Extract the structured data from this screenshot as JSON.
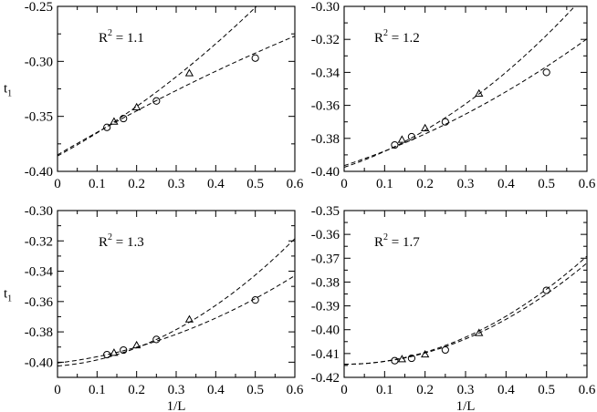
{
  "chart_data": [
    {
      "type": "scatter",
      "annotation": {
        "base": "R",
        "sup": "2",
        "rest": " = 1.1"
      },
      "xlabel": "",
      "ylabel": "t",
      "ylabel_sub": "1",
      "xlim": [
        0,
        0.6
      ],
      "ylim": [
        -0.4,
        -0.25
      ],
      "xticks": [
        0,
        0.1,
        0.2,
        0.3,
        0.4,
        0.5,
        0.6
      ],
      "xtick_labels": [
        "0",
        "0.1",
        "0.2",
        "0.3",
        "0.4",
        "0.5",
        "0.6"
      ],
      "yticks": [
        -0.4,
        -0.35,
        -0.3,
        -0.25
      ],
      "ytick_labels": [
        "-0.40",
        "-0.35",
        "-0.30",
        "-0.25"
      ],
      "series": [
        {
          "marker": "circle",
          "x": [
            0.125,
            0.1667,
            0.25,
            0.5
          ],
          "y": [
            -0.36,
            -0.352,
            -0.336,
            -0.297
          ],
          "fit": [
            -0.385,
            0.21,
            -0.05
          ]
        },
        {
          "marker": "triangle",
          "x": [
            0.1429,
            0.2,
            0.3333
          ],
          "y": [
            -0.355,
            -0.342,
            -0.311
          ],
          "fit": [
            -0.386,
            0.195,
            0.15
          ]
        }
      ]
    },
    {
      "type": "scatter",
      "annotation": {
        "base": "R",
        "sup": "2",
        "rest": " = 1.2"
      },
      "xlabel": "",
      "ylabel": "",
      "xlim": [
        0,
        0.6
      ],
      "ylim": [
        -0.4,
        -0.3
      ],
      "xticks": [
        0,
        0.1,
        0.2,
        0.3,
        0.4,
        0.5,
        0.6
      ],
      "xtick_labels": [
        "0",
        "0.1",
        "0.2",
        "0.3",
        "0.4",
        "0.5",
        "0.6"
      ],
      "yticks": [
        -0.4,
        -0.38,
        -0.36,
        -0.34,
        -0.32,
        -0.3
      ],
      "ytick_labels": [
        "-0.40",
        "-0.38",
        "-0.36",
        "-0.34",
        "-0.32",
        "-0.30"
      ],
      "series": [
        {
          "marker": "circle",
          "x": [
            0.125,
            0.1667,
            0.25,
            0.5
          ],
          "y": [
            -0.384,
            -0.379,
            -0.37,
            -0.34
          ],
          "fit": [
            -0.3965,
            0.08,
            0.08
          ]
        },
        {
          "marker": "triangle",
          "x": [
            0.1429,
            0.2,
            0.3333
          ],
          "y": [
            -0.381,
            -0.374,
            -0.353
          ],
          "fit": [
            -0.3975,
            0.08,
            0.16
          ]
        }
      ]
    },
    {
      "type": "scatter",
      "annotation": {
        "base": "R",
        "sup": "2",
        "rest": " = 1.3"
      },
      "xlabel": "1/L",
      "ylabel": "t",
      "ylabel_sub": "1",
      "xlim": [
        0,
        0.6
      ],
      "ylim": [
        -0.41,
        -0.3
      ],
      "xticks": [
        0,
        0.1,
        0.2,
        0.3,
        0.4,
        0.5,
        0.6
      ],
      "xtick_labels": [
        "0",
        "0.1",
        "0.2",
        "0.3",
        "0.4",
        "0.5",
        "0.6"
      ],
      "yticks": [
        -0.4,
        -0.38,
        -0.36,
        -0.34,
        -0.32,
        -0.3
      ],
      "ytick_labels": [
        "-0.40",
        "-0.38",
        "-0.36",
        "-0.34",
        "-0.32",
        "-0.30"
      ],
      "series": [
        {
          "marker": "circle",
          "x": [
            0.125,
            0.1667,
            0.25,
            0.5
          ],
          "y": [
            -0.395,
            -0.392,
            -0.385,
            -0.359
          ],
          "fit": [
            -0.4005,
            0.03,
            0.11
          ]
        },
        {
          "marker": "triangle",
          "x": [
            0.1429,
            0.2,
            0.3333
          ],
          "y": [
            -0.394,
            -0.389,
            -0.372
          ],
          "fit": [
            -0.4025,
            0.02,
            0.2
          ]
        }
      ]
    },
    {
      "type": "scatter",
      "annotation": {
        "base": "R",
        "sup": "2",
        "rest": " = 1.7"
      },
      "xlabel": "1/L",
      "ylabel": "",
      "xlim": [
        0,
        0.6
      ],
      "ylim": [
        -0.42,
        -0.35
      ],
      "xticks": [
        0,
        0.1,
        0.2,
        0.3,
        0.4,
        0.5,
        0.6
      ],
      "xtick_labels": [
        "0",
        "0.1",
        "0.2",
        "0.3",
        "0.4",
        "0.5",
        "0.6"
      ],
      "yticks": [
        -0.42,
        -0.41,
        -0.4,
        -0.39,
        -0.38,
        -0.37,
        -0.36,
        -0.35
      ],
      "ytick_labels": [
        "-0.42",
        "-0.41",
        "-0.40",
        "-0.39",
        "-0.38",
        "-0.37",
        "-0.36",
        "-0.35"
      ],
      "series": [
        {
          "marker": "circle",
          "x": [
            0.125,
            0.1667,
            0.25,
            0.5
          ],
          "y": [
            -0.413,
            -0.412,
            -0.4085,
            -0.3835
          ],
          "fit": [
            -0.4145,
            0.0,
            0.126
          ]
        },
        {
          "marker": "triangle",
          "x": [
            0.1429,
            0.2,
            0.3333
          ],
          "y": [
            -0.4125,
            -0.4105,
            -0.4015
          ],
          "fit": [
            -0.4145,
            0.0,
            0.118
          ]
        }
      ]
    }
  ]
}
